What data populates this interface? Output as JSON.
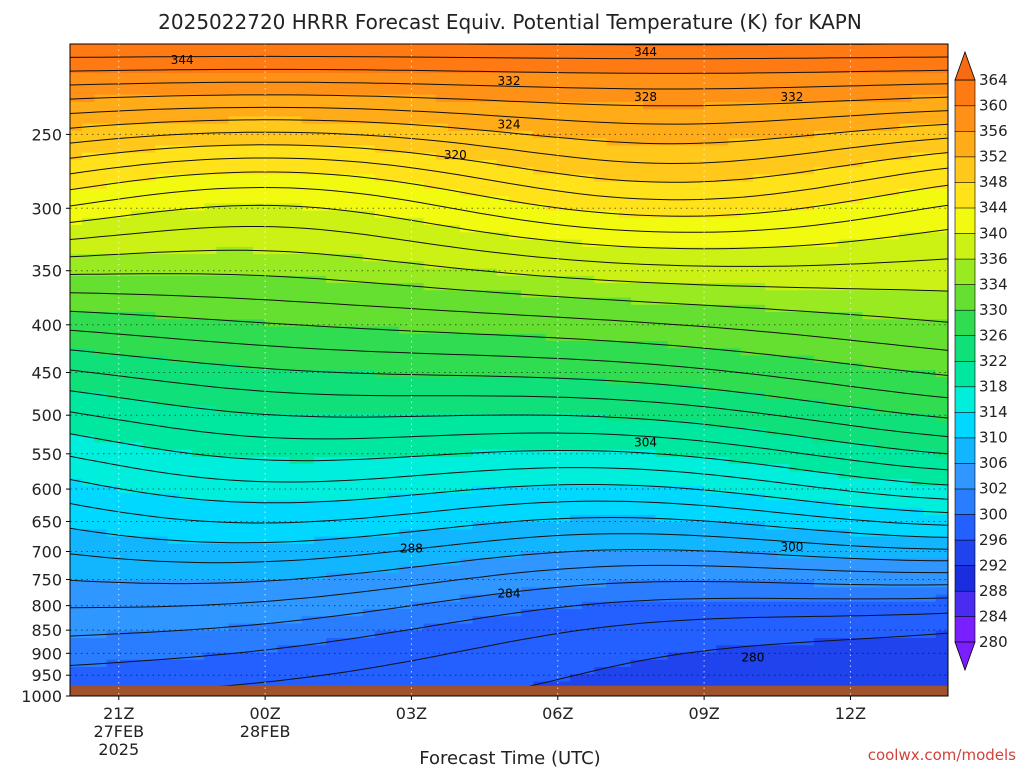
{
  "chart_data": {
    "type": "heatmap",
    "title": "2025022720 HRRR Forecast Equiv. Potential Temperature (K) for KAPN",
    "xlabel": "Forecast Time (UTC)",
    "credit": "coolwx.com/models",
    "x_ticks": [
      {
        "label": "21Z",
        "sub1": "27FEB",
        "sub2": "2025",
        "hour": 0
      },
      {
        "label": "00Z",
        "sub1": "28FEB",
        "sub2": "",
        "hour": 3
      },
      {
        "label": "03Z",
        "sub1": "",
        "sub2": "",
        "hour": 6
      },
      {
        "label": "06Z",
        "sub1": "",
        "sub2": "",
        "hour": 9
      },
      {
        "label": "09Z",
        "sub1": "",
        "sub2": "",
        "hour": 12
      },
      {
        "label": "12Z",
        "sub1": "",
        "sub2": "",
        "hour": 15
      }
    ],
    "xlim": [
      -1,
      17
    ],
    "y_ticks": [
      250,
      300,
      350,
      400,
      450,
      500,
      550,
      600,
      650,
      700,
      750,
      800,
      850,
      900,
      950,
      1000
    ],
    "ylim": [
      200,
      1000
    ],
    "y_scale": "log",
    "grid": true,
    "colorbar": {
      "levels": [
        280,
        284,
        288,
        292,
        296,
        300,
        302,
        306,
        310,
        314,
        318,
        322,
        326,
        330,
        334,
        336,
        340,
        344,
        348,
        352,
        356,
        360,
        364
      ],
      "colors": [
        "#7a1fff",
        "#4a2cf0",
        "#1a2ee0",
        "#1f44ee",
        "#2460ff",
        "#2a7dff",
        "#2f97ff",
        "#12b6ff",
        "#00d8ff",
        "#00eedc",
        "#00e8a0",
        "#10e07a",
        "#30dc50",
        "#66e030",
        "#99ea20",
        "#ccf215",
        "#f2fa10",
        "#ffe21a",
        "#ffc81a",
        "#ffac18",
        "#ff9116",
        "#ff7a12",
        "#f56a12"
      ]
    },
    "contour_labels": [
      {
        "text": "344",
        "hour": 1.3,
        "p": 208
      },
      {
        "text": "344",
        "hour": 10.8,
        "p": 204
      },
      {
        "text": "332",
        "hour": 8.0,
        "p": 219
      },
      {
        "text": "328",
        "hour": 10.8,
        "p": 228
      },
      {
        "text": "332",
        "hour": 13.8,
        "p": 228
      },
      {
        "text": "324",
        "hour": 8.0,
        "p": 244
      },
      {
        "text": "320",
        "hour": 6.9,
        "p": 263
      },
      {
        "text": "304",
        "hour": 10.8,
        "p": 535
      },
      {
        "text": "300",
        "hour": 13.8,
        "p": 692
      },
      {
        "text": "288",
        "hour": 6.0,
        "p": 695
      },
      {
        "text": "284",
        "hour": 8.0,
        "p": 776
      },
      {
        "text": "280",
        "hour": 13.0,
        "p": 909
      }
    ]
  }
}
